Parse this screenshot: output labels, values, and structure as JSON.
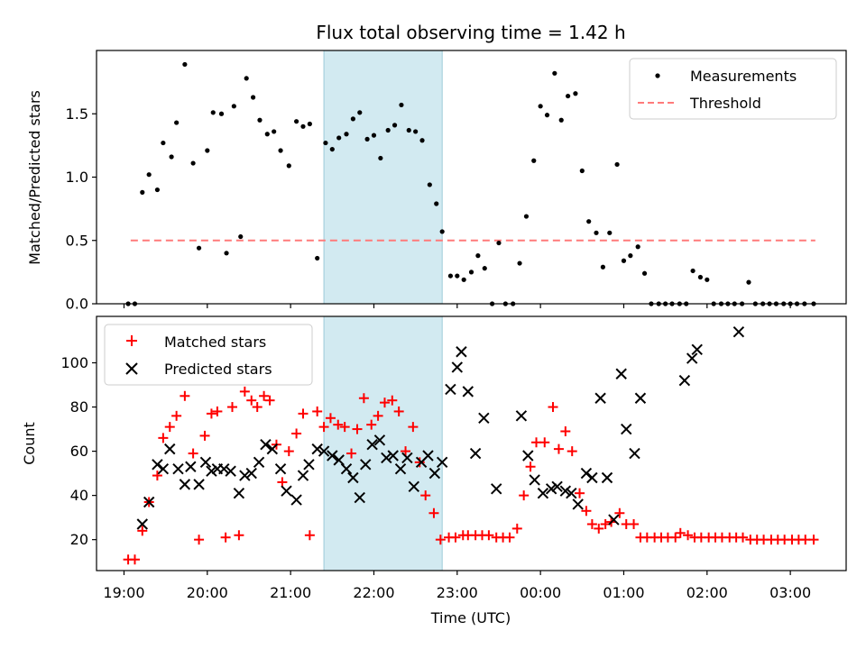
{
  "chart_data": {
    "type": "scatter",
    "title": "Flux total observing time = 1.42 h",
    "xlabel": "Time (UTC)",
    "x_ticks": [
      "19:00",
      "20:00",
      "21:00",
      "22:00",
      "23:00",
      "00:00",
      "01:00",
      "02:00",
      "03:00"
    ],
    "xlim_hours": [
      18.67,
      27.67
    ],
    "shaded_interval_hours": [
      21.4,
      22.82
    ],
    "panels": [
      {
        "id": "ratio",
        "ylabel": "Matched/Predicted stars",
        "ylim": [
          0,
          2.0
        ],
        "y_ticks": [
          "0.0",
          "0.5",
          "1.0",
          "1.5"
        ],
        "legend_position": "upper right",
        "series": [
          {
            "name": "Measurements",
            "marker": "dot",
            "color": "#000000",
            "x": [
              19.05,
              19.13,
              19.22,
              19.3,
              19.4,
              19.47,
              19.57,
              19.63,
              19.73,
              19.83,
              19.9,
              20.0,
              20.07,
              20.17,
              20.23,
              20.32,
              20.4,
              20.47,
              20.55,
              20.63,
              20.72,
              20.8,
              20.88,
              20.98,
              21.07,
              21.15,
              21.23,
              21.32,
              21.42,
              21.5,
              21.58,
              21.67,
              21.75,
              21.83,
              21.92,
              22.0,
              22.08,
              22.17,
              22.25,
              22.33,
              22.42,
              22.5,
              22.58,
              22.67,
              22.75,
              22.82,
              22.92,
              23.0,
              23.08,
              23.17,
              23.25,
              23.33,
              23.42,
              23.5,
              23.58,
              23.67,
              23.75,
              23.83,
              23.92,
              24.0,
              24.08,
              24.17,
              24.25,
              24.33,
              24.42,
              24.5,
              24.58,
              24.67,
              24.75,
              24.83,
              24.92,
              25.0,
              25.08,
              25.17,
              25.25,
              25.33,
              25.42,
              25.5,
              25.58,
              25.67,
              25.75,
              25.83,
              25.92,
              26.0,
              26.08,
              26.17,
              26.25,
              26.33,
              26.42,
              26.5,
              26.58,
              26.67,
              26.75,
              26.83,
              26.92,
              27.0,
              27.08,
              27.17,
              27.28
            ],
            "y": [
              0.0,
              0.0,
              0.88,
              1.02,
              0.9,
              1.27,
              1.16,
              1.43,
              1.89,
              1.11,
              0.44,
              1.21,
              1.51,
              1.5,
              0.4,
              1.56,
              0.53,
              1.78,
              1.63,
              1.45,
              1.34,
              1.36,
              1.21,
              1.09,
              1.44,
              1.4,
              1.42,
              0.36,
              1.27,
              1.22,
              1.31,
              1.34,
              1.46,
              1.51,
              1.3,
              1.33,
              1.15,
              1.37,
              1.41,
              1.57,
              1.37,
              1.36,
              1.29,
              0.94,
              0.79,
              0.57,
              0.22,
              0.22,
              0.19,
              0.25,
              0.38,
              0.28,
              0.0,
              0.48,
              0.0,
              0.0,
              0.32,
              0.69,
              1.13,
              1.56,
              1.49,
              1.82,
              1.45,
              1.64,
              1.66,
              1.05,
              0.65,
              0.56,
              0.29,
              0.56,
              1.1,
              0.34,
              0.38,
              0.45,
              0.24,
              0.0,
              0.0,
              0.0,
              0.0,
              0.0,
              0.0,
              0.26,
              0.21,
              0.19,
              0.0,
              0.0,
              0.0,
              0.0,
              0.0,
              0.17,
              0.0,
              0.0,
              0.0,
              0.0,
              0.0,
              0.0,
              0.0,
              0.0,
              0.0
            ]
          },
          {
            "name": "Threshold",
            "marker": "dashed-line",
            "color": "#ff7a7a",
            "x": [
              19.08,
              27.3
            ],
            "y": [
              0.5,
              0.5
            ]
          }
        ]
      },
      {
        "id": "counts",
        "ylabel": "Count",
        "ylim": [
          6,
          121
        ],
        "y_ticks": [
          "20",
          "40",
          "60",
          "80",
          "100"
        ],
        "legend_position": "upper left",
        "series": [
          {
            "name": "Matched stars",
            "marker": "plus",
            "color": "#ff0000",
            "x": [
              19.05,
              19.13,
              19.22,
              19.3,
              19.4,
              19.47,
              19.55,
              19.63,
              19.73,
              19.83,
              19.9,
              19.97,
              20.05,
              20.12,
              20.22,
              20.3,
              20.38,
              20.45,
              20.53,
              20.6,
              20.68,
              20.75,
              20.83,
              20.9,
              20.98,
              21.07,
              21.15,
              21.23,
              21.32,
              21.4,
              21.48,
              21.57,
              21.65,
              21.73,
              21.8,
              21.88,
              21.97,
              22.05,
              22.13,
              22.22,
              22.3,
              22.38,
              22.47,
              22.55,
              22.62,
              22.72,
              22.8,
              22.9,
              22.98,
              23.07,
              23.13,
              23.22,
              23.3,
              23.38,
              23.47,
              23.55,
              23.63,
              23.72,
              23.8,
              23.88,
              23.95,
              24.05,
              24.15,
              24.22,
              24.3,
              24.38,
              24.47,
              24.55,
              24.62,
              24.7,
              24.78,
              24.85,
              24.95,
              25.03,
              25.12,
              25.2,
              25.28,
              25.37,
              25.45,
              25.53,
              25.62,
              25.68,
              25.77,
              25.85,
              25.93,
              26.02,
              26.1,
              26.18,
              26.27,
              26.35,
              26.43,
              26.52,
              26.6,
              26.68,
              26.77,
              26.85,
              26.93,
              27.02,
              27.1,
              27.18,
              27.28
            ],
            "y": [
              11,
              11,
              24,
              37,
              49,
              66,
              71,
              76,
              85,
              59,
              20,
              67,
              77,
              78,
              21,
              80,
              22,
              87,
              83,
              80,
              85,
              83,
              63,
              46,
              60,
              68,
              77,
              22,
              78,
              71,
              75,
              72,
              71,
              59,
              70,
              84,
              72,
              76,
              82,
              83,
              78,
              60,
              71,
              55,
              40,
              32,
              20,
              21,
              21,
              22,
              22,
              22,
              22,
              22,
              21,
              21,
              21,
              25,
              40,
              53,
              64,
              64,
              80,
              61,
              69,
              60,
              41,
              33,
              27,
              25,
              27,
              28,
              32,
              27,
              27,
              21,
              21,
              21,
              21,
              21,
              21,
              23,
              22,
              21,
              21,
              21,
              21,
              21,
              21,
              21,
              21,
              20,
              20,
              20,
              20,
              20,
              20,
              20,
              20,
              20,
              20
            ]
          },
          {
            "name": "Predicted stars",
            "marker": "x",
            "color": "#000000",
            "x": [
              19.22,
              19.3,
              19.4,
              19.47,
              19.55,
              19.65,
              19.73,
              19.8,
              19.9,
              19.98,
              20.05,
              20.12,
              20.2,
              20.28,
              20.38,
              20.45,
              20.53,
              20.62,
              20.7,
              20.78,
              20.88,
              20.95,
              21.07,
              21.15,
              21.22,
              21.32,
              21.4,
              21.5,
              21.58,
              21.67,
              21.75,
              21.83,
              21.9,
              21.98,
              22.07,
              22.15,
              22.23,
              22.32,
              22.4,
              22.48,
              22.57,
              22.65,
              22.73,
              22.82,
              22.92,
              23.0,
              23.05,
              23.13,
              23.22,
              23.32,
              23.47,
              23.77,
              23.85,
              23.93,
              24.03,
              24.13,
              24.2,
              24.3,
              24.37,
              24.45,
              24.55,
              24.62,
              24.72,
              24.8,
              24.88,
              24.97,
              25.03,
              25.13,
              25.2,
              25.73,
              25.82,
              25.88,
              26.38
            ],
            "y": [
              27,
              37,
              54,
              52,
              61,
              52,
              45,
              53,
              45,
              55,
              51,
              52,
              52,
              51,
              41,
              49,
              50,
              55,
              63,
              61,
              52,
              42,
              38,
              49,
              54,
              61,
              60,
              58,
              56,
              52,
              48,
              39,
              54,
              63,
              65,
              57,
              58,
              52,
              57,
              44,
              55,
              58,
              50,
              55,
              88,
              98,
              105,
              87,
              59,
              75,
              43,
              76,
              58,
              47,
              41,
              43,
              44,
              42,
              41,
              36,
              50,
              48,
              84,
              48,
              29,
              95,
              70,
              59,
              84,
              92,
              102,
              106,
              114
            ]
          }
        ]
      }
    ]
  }
}
